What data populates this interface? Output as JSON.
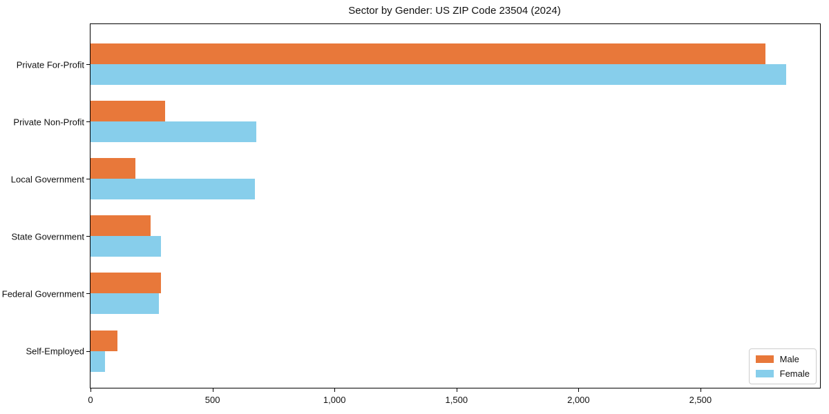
{
  "title": "Sector by Gender: US ZIP Code 23504 (2024)",
  "colors": {
    "male": "#E8783A",
    "female": "#87CEEB",
    "spine": "#000000",
    "background": "#FFFFFF",
    "legend_border": "#CCCCCC"
  },
  "legend": {
    "position": "lower-right",
    "entries": [
      {
        "label": "Male",
        "color": "#E8783A"
      },
      {
        "label": "Female",
        "color": "#87CEEB"
      }
    ]
  },
  "chart_data": {
    "type": "bar",
    "orientation": "horizontal",
    "title": "Sector by Gender: US ZIP Code 23504 (2024)",
    "categories": [
      "Private For-Profit",
      "Private Non-Profit",
      "Local Government",
      "State Government",
      "Federal Government",
      "Self-Employed"
    ],
    "series": [
      {
        "name": "Male",
        "color": "#E8783A",
        "values": [
          2765,
          305,
          185,
          245,
          290,
          110
        ]
      },
      {
        "name": "Female",
        "color": "#87CEEB",
        "values": [
          2850,
          680,
          675,
          290,
          280,
          60
        ]
      }
    ],
    "xlabel": "",
    "ylabel": "",
    "xlim": [
      0,
      2990
    ],
    "xticks": [
      0,
      500,
      1000,
      1500,
      2000,
      2500
    ],
    "xtick_labels": [
      "0",
      "500",
      "1,000",
      "1,500",
      "2,000",
      "2,500"
    ],
    "grid": false,
    "legend_position": "lower right"
  }
}
